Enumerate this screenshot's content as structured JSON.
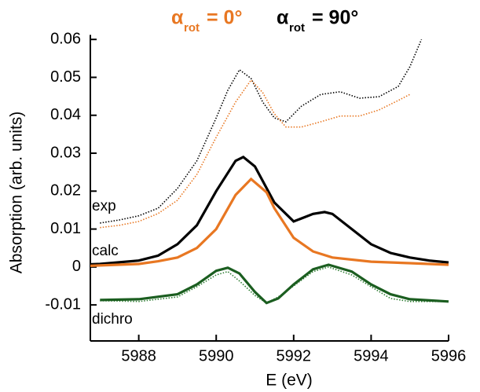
{
  "chart_data": {
    "type": "line",
    "legend": [
      {
        "symbol": "α",
        "sub": "rot",
        "text": "= 0°",
        "color": "#e87722"
      },
      {
        "symbol": "α",
        "sub": "rot",
        "text": "= 90°",
        "color": "#000000"
      }
    ],
    "x_label": "E (eV)",
    "y_label": "Absorption (arb. units)",
    "annotations": [
      "exp",
      "calc",
      "dichro"
    ],
    "xlim": [
      5986.75,
      5996
    ],
    "xticks": [
      5988,
      5990,
      5992,
      5994,
      5996
    ],
    "ylim": [
      -0.0195,
      0.0612
    ],
    "yticks": [
      -0.01,
      0,
      0.01,
      0.02,
      0.03,
      0.04,
      0.05,
      0.06
    ],
    "series": [
      {
        "color": "#000000",
        "style": "dotted",
        "x": [
          5987,
          5987.5,
          5988,
          5988.5,
          5989,
          5989.5,
          5990,
          5990.3,
          5990.6,
          5990.9,
          5991.2,
          5991.5,
          5991.8,
          5992.2,
          5992.7,
          5993.2,
          5993.7,
          5994.2,
          5994.7,
          5995,
          5995.3
        ],
        "values": [
          0.0116,
          0.0124,
          0.0135,
          0.0155,
          0.0207,
          0.028,
          0.0393,
          0.0466,
          0.052,
          0.0497,
          0.0435,
          0.0393,
          0.0383,
          0.0424,
          0.0455,
          0.0462,
          0.0445,
          0.0449,
          0.0476,
          0.0528,
          0.06
        ]
      },
      {
        "color": "#e87722",
        "style": "dotted",
        "x": [
          5987,
          5987.5,
          5988,
          5988.5,
          5989,
          5989.5,
          5990,
          5990.5,
          5990.9,
          5991.2,
          5991.5,
          5991.8,
          5992.2,
          5992.7,
          5993.2,
          5993.7,
          5994.2,
          5994.7,
          5995
        ],
        "values": [
          0.0104,
          0.011,
          0.012,
          0.0141,
          0.0176,
          0.0244,
          0.0342,
          0.0435,
          0.0493,
          0.046,
          0.0404,
          0.0369,
          0.0369,
          0.0383,
          0.0398,
          0.0398,
          0.0414,
          0.0439,
          0.0455
        ]
      },
      {
        "color": "#000000",
        "style": "solid",
        "x": [
          5986.75,
          5987,
          5988,
          5988.5,
          5989,
          5989.5,
          5990,
          5990.5,
          5990.7,
          5991,
          5991.5,
          5992,
          5992.5,
          5992.8,
          5993,
          5993.5,
          5994,
          5994.5,
          5995,
          5995.5,
          5996
        ],
        "values": [
          0.0007,
          0.0008,
          0.0017,
          0.003,
          0.006,
          0.011,
          0.02,
          0.028,
          0.029,
          0.0265,
          0.017,
          0.012,
          0.014,
          0.0145,
          0.014,
          0.01,
          0.006,
          0.0037,
          0.0025,
          0.0017,
          0.0012
        ]
      },
      {
        "color": "#e87722",
        "style": "solid",
        "x": [
          5986.75,
          5987,
          5988,
          5988.5,
          5989,
          5989.5,
          5990,
          5990.5,
          5990.9,
          5991.3,
          5991.5,
          5992,
          5992.5,
          5993,
          5994,
          5995,
          5996
        ],
        "values": [
          0.0003,
          0.0004,
          0.0008,
          0.0015,
          0.0025,
          0.005,
          0.01,
          0.019,
          0.0232,
          0.0197,
          0.0155,
          0.0077,
          0.0041,
          0.0025,
          0.0014,
          0.001,
          0.0006
        ]
      },
      {
        "color": "#2e7d32",
        "style": "dotted",
        "x": [
          5987,
          5988,
          5989,
          5989.5,
          5990,
          5990.3,
          5990.6,
          5991,
          5991.3,
          5991.6,
          5992,
          5992.5,
          5992.9,
          5993.5,
          5994,
          5994.5,
          5995,
          5996
        ],
        "values": [
          -0.0089,
          -0.0091,
          -0.0079,
          -0.0052,
          -0.0021,
          -0.0012,
          -0.0037,
          -0.0075,
          -0.0095,
          -0.0079,
          -0.005,
          -0.0012,
          0,
          -0.0021,
          -0.0052,
          -0.0083,
          -0.0091,
          -0.0091
        ]
      },
      {
        "color": "#1b5e20",
        "style": "solid",
        "x": [
          5987,
          5988,
          5989,
          5989.5,
          5990,
          5990.3,
          5990.6,
          5991,
          5991.3,
          5991.6,
          5992,
          5992.5,
          5992.9,
          5993.5,
          5994,
          5994.5,
          5995,
          5996
        ],
        "values": [
          -0.0087,
          -0.0085,
          -0.0072,
          -0.0046,
          -0.001,
          -0.0002,
          -0.0017,
          -0.0066,
          -0.0095,
          -0.0083,
          -0.0046,
          -0.0006,
          0.0006,
          -0.0012,
          -0.0046,
          -0.0072,
          -0.0085,
          -0.0091
        ]
      }
    ]
  }
}
